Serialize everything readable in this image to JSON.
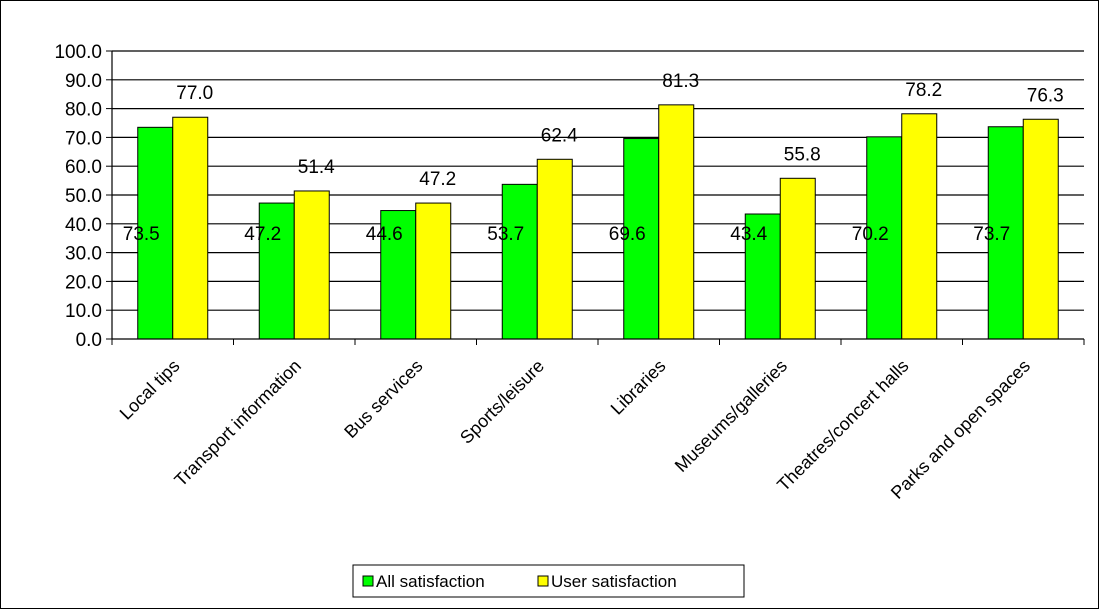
{
  "chart_data": {
    "type": "bar",
    "categories": [
      "Local tips",
      "Transport information",
      "Bus services",
      "Sports/leisure",
      "Libraries",
      "Museums/galleries",
      "Theatres/concert halls",
      "Parks and open spaces"
    ],
    "series": [
      {
        "name": "All satisfaction",
        "values": [
          73.5,
          47.2,
          44.6,
          53.7,
          69.6,
          43.4,
          70.2,
          73.7
        ],
        "labels": [
          "73.5",
          "47.2",
          "44.6",
          "53.7",
          "69.6",
          "43.4",
          "70.2",
          "73.7"
        ],
        "color": "#00ff00"
      },
      {
        "name": "User satisfaction",
        "values": [
          77.0,
          51.4,
          47.2,
          62.4,
          81.3,
          55.8,
          78.2,
          76.3
        ],
        "labels": [
          "77.0",
          "51.4",
          "47.2",
          "62.4",
          "81.3",
          "55.8",
          "78.2",
          "76.3"
        ],
        "color": "#ffff00"
      }
    ],
    "yticks": [
      "0.0",
      "10.0",
      "20.0",
      "30.0",
      "40.0",
      "50.0",
      "60.0",
      "70.0",
      "80.0",
      "90.0",
      "100.0"
    ],
    "ylim": [
      0,
      100
    ],
    "grid": true,
    "legend_position": "bottom",
    "title": "",
    "xlabel": "",
    "ylabel": ""
  }
}
